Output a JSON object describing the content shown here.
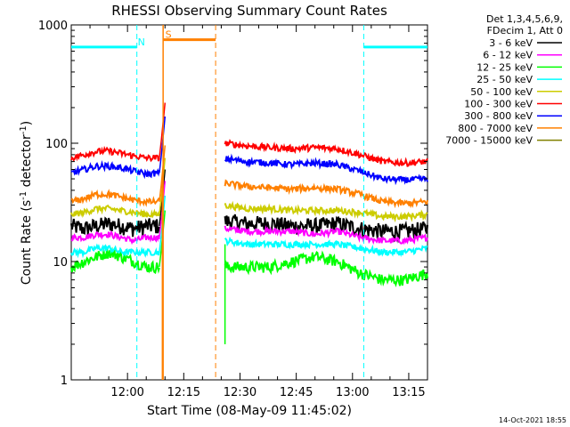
{
  "chart_data": {
    "type": "line",
    "title": "RHESSI Observing Summary Count Rates",
    "xlabel": "Start Time (08-May-09 11:45:02)",
    "ylabel": "Count Rate (s⁻¹ detector⁻¹)",
    "ylabel_parts": {
      "pre": "Count Rate (s",
      "sup1": "-1",
      "mid": " detector",
      "sup2": "-1",
      "post": ")"
    },
    "yscale": "log",
    "ylim": [
      1,
      1000
    ],
    "xlim_minutes_after_start": [
      0,
      95
    ],
    "yticks": [
      {
        "value": 1,
        "label": "1"
      },
      {
        "value": 10,
        "label": "10"
      },
      {
        "value": 100,
        "label": "100"
      },
      {
        "value": 1000,
        "label": "1000"
      }
    ],
    "xticks": [
      {
        "minutes": 15,
        "label": "12:00"
      },
      {
        "minutes": 30,
        "label": "12:15"
      },
      {
        "minutes": 45,
        "label": "12:30"
      },
      {
        "minutes": 60,
        "label": "12:45"
      },
      {
        "minutes": 75,
        "label": "13:00"
      },
      {
        "minutes": 90,
        "label": "13:15"
      }
    ],
    "legend": {
      "placement": "right-outside",
      "header": [
        "Det 1,3,4,5,6,9,",
        "FDecim 1, Att 0"
      ]
    },
    "series": [
      {
        "name": "3 - 6 keV",
        "color": "#000000",
        "values_before_gap": [
          20,
          19,
          20,
          21,
          20,
          19,
          20,
          20
        ],
        "values_after_gap": [
          22,
          21,
          21,
          20,
          20,
          21,
          19,
          18,
          18,
          19
        ]
      },
      {
        "name": "6 - 12 keV",
        "color": "#ff00ff",
        "values_before_gap": [
          16,
          16,
          17,
          17,
          16,
          15,
          16,
          16
        ],
        "values_after_gap": [
          19,
          18,
          18,
          18,
          17,
          18,
          16,
          15,
          15,
          16
        ]
      },
      {
        "name": "12 - 25 keV",
        "color": "#00ff00",
        "values_before_gap": [
          9,
          10,
          11,
          12,
          11,
          10,
          9,
          9
        ],
        "values_after_gap": [
          9,
          9,
          9,
          10,
          11,
          10,
          8,
          7,
          7,
          8
        ]
      },
      {
        "name": "25 - 50 keV",
        "color": "#00ffff",
        "values_before_gap": [
          12,
          12,
          13,
          13,
          12,
          12,
          12,
          12
        ],
        "values_after_gap": [
          15,
          14,
          14,
          14,
          14,
          14,
          13,
          12,
          12,
          13
        ]
      },
      {
        "name": "50 - 100 keV",
        "color": "#cccc00",
        "values_before_gap": [
          25,
          26,
          28,
          28,
          27,
          26,
          25,
          25
        ],
        "values_after_gap": [
          30,
          28,
          28,
          27,
          27,
          27,
          26,
          24,
          24,
          25
        ]
      },
      {
        "name": "100 - 300 keV",
        "color": "#ff0000",
        "values_before_gap": [
          75,
          80,
          85,
          86,
          82,
          78,
          75,
          75
        ],
        "values_after_gap": [
          100,
          95,
          92,
          90,
          92,
          90,
          80,
          70,
          68,
          70
        ]
      },
      {
        "name": "300 - 800 keV",
        "color": "#0000ff",
        "values_before_gap": [
          56,
          60,
          64,
          64,
          62,
          58,
          55,
          56
        ],
        "values_after_gap": [
          74,
          70,
          68,
          66,
          68,
          66,
          58,
          50,
          49,
          50
        ]
      },
      {
        "name": "800 - 7000 keV",
        "color": "#ff8000",
        "values_before_gap": [
          32,
          34,
          37,
          37,
          35,
          33,
          32,
          32
        ],
        "values_after_gap": [
          46,
          43,
          42,
          41,
          42,
          41,
          37,
          32,
          31,
          32
        ]
      },
      {
        "name": "7000 - 15000 keV",
        "color": "#808000",
        "values_before_gap": [],
        "values_after_gap": []
      }
    ],
    "data_gap_minutes": [
      24.5,
      41
    ],
    "spike_minutes": [
      23,
      25
    ],
    "flags": [
      {
        "label": "N",
        "color": "#00ffff",
        "level": 650,
        "segments_minutes": [
          [
            0,
            17.5
          ],
          [
            78,
            95
          ]
        ],
        "dashed_edges_minutes": [
          17.5,
          78
        ]
      },
      {
        "label": "S",
        "color": "#ff8000",
        "level": 750,
        "segments_minutes": [
          [
            24.5,
            38.5
          ]
        ],
        "dashed_edges_minutes": [
          38.5
        ]
      }
    ]
  },
  "footer": {
    "timestamp": "14-Oct-2021 18:55"
  }
}
